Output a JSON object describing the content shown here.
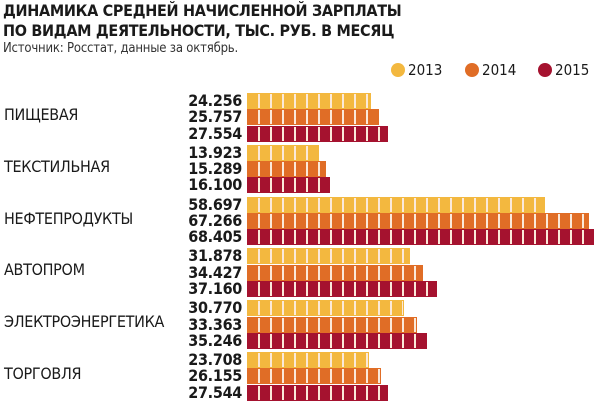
{
  "title_line1": "ДИНАМИКА СРЕДНЕЙ НАЧИСЛЕННОЙ ЗАРПЛАТЫ",
  "title_line2": "ПО ВИДАМ ДЕЯТЕЛЬНОСТИ, ТЫС. РУБ. В МЕСЯЦ",
  "subtitle": "Источник: Росстат, данные за октябрь.",
  "chart_data": {
    "type": "bar",
    "orientation": "horizontal",
    "title": "ДИНАМИКА СРЕДНЕЙ НАЧИСЛЕННОЙ ЗАРПЛАТЫ ПО ВИДАМ ДЕЯТЕЛЬНОСТИ, ТЫС. РУБ. В МЕСЯЦ",
    "categories": [
      "ПИЩЕВАЯ",
      "ТЕКСТИЛЬНАЯ",
      "НЕФТЕПРОДУКТЫ",
      "АВТОПРОМ",
      "ЭЛЕКТРОЭНЕРГЕТИКА",
      "ТОРГОВЛЯ"
    ],
    "series": [
      {
        "name": "2013",
        "color": "#F3B83F",
        "values": [
          24.256,
          13.923,
          58.697,
          31.878,
          30.77,
          23.708
        ],
        "labels": [
          "24.256",
          "13.923",
          "58.697",
          "31.878",
          "30.770",
          "23.708"
        ]
      },
      {
        "name": "2014",
        "color": "#E06D26",
        "values": [
          25.757,
          15.289,
          67.266,
          34.427,
          33.363,
          26.155
        ],
        "labels": [
          "25.757",
          "15.289",
          "67.266",
          "34.427",
          "33.363",
          "26.155"
        ]
      },
      {
        "name": "2015",
        "color": "#A5122F",
        "values": [
          27.554,
          16.1,
          68.405,
          37.16,
          35.246,
          27.544
        ],
        "labels": [
          "27.554",
          "16.100",
          "68.405",
          "37.160",
          "35.246",
          "27.544"
        ]
      }
    ],
    "xlim": [
      0,
      69
    ],
    "legend": "top-right",
    "grid": false
  }
}
